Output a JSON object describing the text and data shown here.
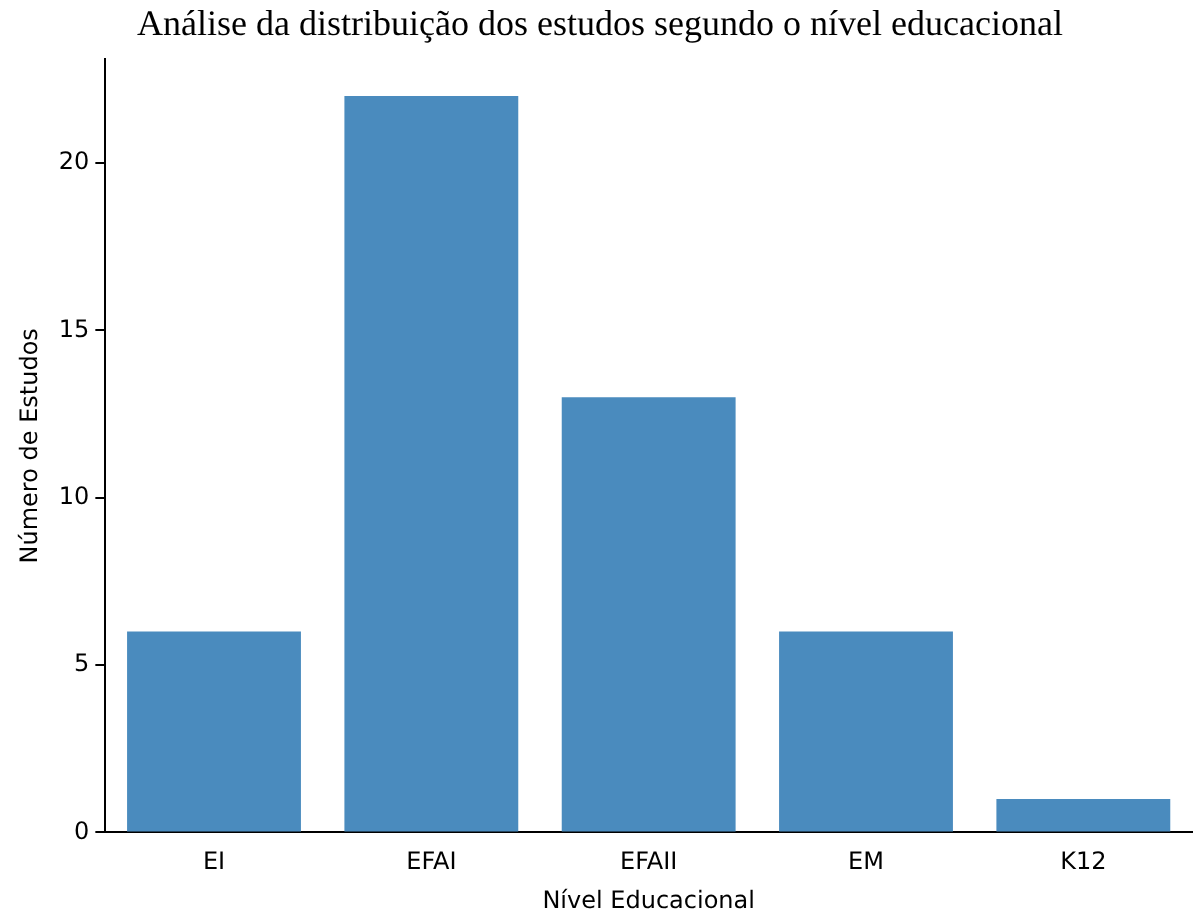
{
  "chart_data": {
    "type": "bar",
    "title": "Análise da distribuição dos estudos segundo o nível educacional",
    "xlabel": "Nível Educacional",
    "ylabel": "Número de Estudos",
    "categories": [
      "EI",
      "EFAI",
      "EFAII",
      "EM",
      "K12"
    ],
    "values": [
      6,
      22,
      13,
      6,
      1
    ],
    "color": "#4a8bbe",
    "ylim": [
      0,
      23.1
    ],
    "yticks": [
      0,
      5,
      10,
      15,
      20
    ],
    "grid": false,
    "legend": false
  }
}
